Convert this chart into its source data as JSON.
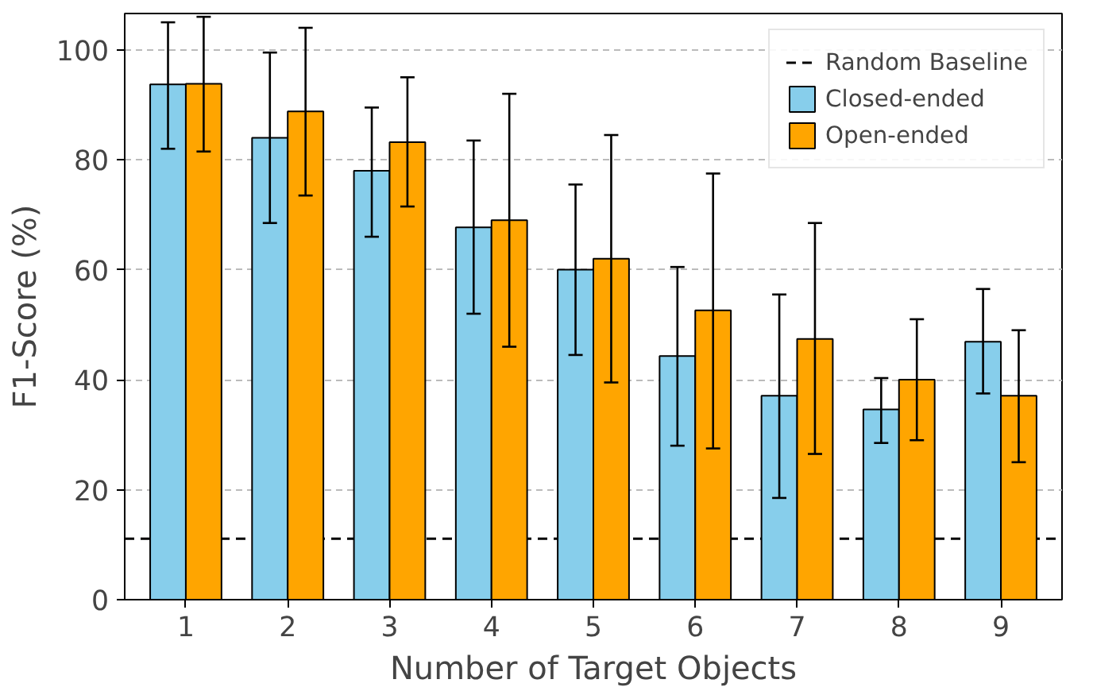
{
  "chart_data": {
    "type": "bar",
    "xlabel": "Number of Target Objects",
    "ylabel": "F1-Score (%)",
    "categories": [
      "1",
      "2",
      "3",
      "4",
      "5",
      "6",
      "7",
      "8",
      "9"
    ],
    "series": [
      {
        "name": "Closed-ended",
        "color": "#87ceeb",
        "values": [
          93.7,
          84,
          78,
          67.7,
          60,
          44.3,
          37.1,
          34.6,
          46.9
        ],
        "errors": [
          [
            82,
            105
          ],
          [
            68.5,
            99.5
          ],
          [
            66,
            89.5
          ],
          [
            52,
            83.5
          ],
          [
            44.5,
            75.5
          ],
          [
            28,
            60.5
          ],
          [
            18.5,
            55.5
          ],
          [
            28.5,
            40.3
          ],
          [
            37.5,
            56.5
          ]
        ]
      },
      {
        "name": "Open-ended",
        "color": "#ffa500",
        "values": [
          93.8,
          88.8,
          83.2,
          69,
          62,
          52.6,
          47.4,
          40,
          37.1
        ],
        "errors": [
          [
            81.5,
            106
          ],
          [
            73.5,
            104
          ],
          [
            71.5,
            95
          ],
          [
            46,
            92
          ],
          [
            39.5,
            84.5
          ],
          [
            27.5,
            77.5
          ],
          [
            26.5,
            68.5
          ],
          [
            29,
            51
          ],
          [
            25,
            49
          ]
        ]
      }
    ],
    "ref_lines": [
      {
        "axis": "y",
        "value": 11.1,
        "label": "Random Baseline",
        "color": "#000000",
        "line_style": "dashed"
      }
    ],
    "ylim": [
      0,
      106.6
    ],
    "yticks": [
      0,
      20,
      40,
      60,
      80,
      100
    ],
    "grid": "y",
    "legend": "top right"
  }
}
